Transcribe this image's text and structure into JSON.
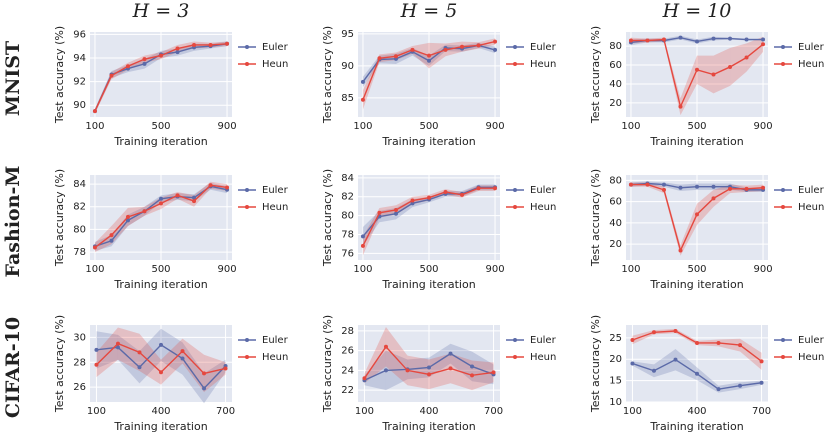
{
  "columns": [
    "H = 3",
    "H = 5",
    "H = 10"
  ],
  "rows": [
    "MNIST",
    "Fashion-M",
    "CIFAR-10"
  ],
  "chart_data": [
    {
      "type": "line",
      "xlabel": "Training iteration",
      "ylabel": "Test accuracy (%)",
      "legend": "right",
      "grid": true,
      "x": [
        100,
        200,
        300,
        400,
        500,
        600,
        700,
        800,
        900
      ],
      "xlim": [
        70,
        930
      ],
      "xticks": [
        100,
        500,
        900
      ],
      "ylim": [
        89,
        96.2
      ],
      "yticks": [
        90,
        92,
        94,
        96
      ],
      "series": [
        {
          "name": "Euler",
          "color": "#5b6aa8",
          "values": [
            89.5,
            92.6,
            93.1,
            93.5,
            94.3,
            94.5,
            94.9,
            95.0,
            95.2
          ],
          "spread": [
            0.2,
            0.3,
            0.3,
            0.4,
            0.3,
            0.3,
            0.3,
            0.2,
            0.2
          ]
        },
        {
          "name": "Heun",
          "color": "#e5483f",
          "values": [
            89.5,
            92.5,
            93.3,
            93.9,
            94.2,
            94.8,
            95.1,
            95.1,
            95.2
          ],
          "spread": [
            0.2,
            0.3,
            0.3,
            0.3,
            0.3,
            0.3,
            0.3,
            0.2,
            0.2
          ]
        }
      ]
    },
    {
      "type": "line",
      "xlabel": "Training iteration",
      "ylabel": "Test accuracy (%)",
      "legend": "right",
      "grid": true,
      "x": [
        100,
        200,
        300,
        400,
        500,
        600,
        700,
        800,
        900
      ],
      "xlim": [
        70,
        930
      ],
      "xticks": [
        100,
        500,
        900
      ],
      "ylim": [
        82,
        95.3
      ],
      "yticks": [
        85,
        90,
        95
      ],
      "series": [
        {
          "name": "Euler",
          "color": "#5b6aa8",
          "values": [
            87.5,
            91.0,
            91.1,
            92.2,
            90.8,
            92.8,
            92.7,
            93.2,
            92.5
          ],
          "spread": [
            0.8,
            0.6,
            0.8,
            0.6,
            0.8,
            0.5,
            0.5,
            0.4,
            0.5
          ]
        },
        {
          "name": "Heun",
          "color": "#e5483f",
          "values": [
            84.7,
            91.2,
            91.5,
            92.5,
            91.6,
            92.5,
            93.0,
            93.2,
            93.8
          ],
          "spread": [
            1.5,
            0.6,
            0.6,
            0.6,
            2,
            1,
            0.8,
            0.5,
            0.5
          ]
        }
      ]
    },
    {
      "type": "line",
      "xlabel": "Training iteration",
      "ylabel": "Test accuracy (%)",
      "legend": "right",
      "grid": true,
      "x": [
        100,
        200,
        300,
        400,
        500,
        600,
        700,
        800,
        900
      ],
      "xlim": [
        70,
        930
      ],
      "xticks": [
        100,
        500,
        900
      ],
      "ylim": [
        5,
        95
      ],
      "yticks": [
        20,
        40,
        60,
        80
      ],
      "series": [
        {
          "name": "Euler",
          "color": "#5b6aa8",
          "values": [
            84,
            86,
            86,
            89,
            85,
            88,
            88,
            87,
            87
          ],
          "spread": [
            3,
            2,
            2,
            2,
            2,
            2,
            1,
            1,
            1
          ]
        },
        {
          "name": "Heun",
          "color": "#e5483f",
          "values": [
            86,
            86,
            87,
            16,
            55,
            50,
            58,
            68,
            82
          ],
          "spread": [
            3,
            2,
            2,
            9,
            15,
            20,
            20,
            15,
            8
          ]
        }
      ]
    },
    {
      "type": "line",
      "xlabel": "Training iteration",
      "ylabel": "Test accuracy (%)",
      "legend": "right",
      "grid": true,
      "x": [
        100,
        200,
        300,
        400,
        500,
        600,
        700,
        800,
        900
      ],
      "xlim": [
        70,
        930
      ],
      "xticks": [
        100,
        500,
        900
      ],
      "ylim": [
        77.3,
        84.8
      ],
      "yticks": [
        78,
        80,
        82,
        84
      ],
      "series": [
        {
          "name": "Euler",
          "color": "#5b6aa8",
          "values": [
            78.5,
            79.0,
            80.8,
            81.6,
            82.7,
            82.9,
            82.8,
            83.8,
            83.5
          ],
          "spread": [
            0.4,
            0.5,
            0.5,
            0.4,
            0.3,
            0.3,
            0.3,
            0.3,
            0.3
          ]
        },
        {
          "name": "Heun",
          "color": "#e5483f",
          "values": [
            78.4,
            79.5,
            81.1,
            81.6,
            82.3,
            83.0,
            82.5,
            83.9,
            83.7
          ],
          "spread": [
            0.4,
            0.8,
            0.8,
            0.4,
            0.5,
            0.3,
            0.5,
            0.3,
            0.3
          ]
        }
      ]
    },
    {
      "type": "line",
      "xlabel": "Training iteration",
      "ylabel": "Test accuracy (%)",
      "legend": "right",
      "grid": true,
      "x": [
        100,
        200,
        300,
        400,
        500,
        600,
        700,
        800,
        900
      ],
      "xlim": [
        70,
        930
      ],
      "xticks": [
        100,
        500,
        900
      ],
      "ylim": [
        75.3,
        84.3
      ],
      "yticks": [
        76,
        78,
        80,
        82,
        84
      ],
      "series": [
        {
          "name": "Euler",
          "color": "#5b6aa8",
          "values": [
            77.8,
            79.9,
            80.2,
            81.3,
            81.7,
            82.3,
            82.3,
            83.0,
            83.0
          ],
          "spread": [
            1,
            0.6,
            0.6,
            0.4,
            0.3,
            0.3,
            0.3,
            0.3,
            0.3
          ]
        },
        {
          "name": "Heun",
          "color": "#e5483f",
          "values": [
            76.8,
            80.3,
            80.6,
            81.6,
            81.9,
            82.5,
            82.2,
            82.9,
            82.9
          ],
          "spread": [
            1,
            0.5,
            0.5,
            0.4,
            0.3,
            0.3,
            0.3,
            0.3,
            0.3
          ]
        }
      ]
    },
    {
      "type": "line",
      "xlabel": "Training iteration",
      "ylabel": "Test accuracy (%)",
      "legend": "right",
      "grid": true,
      "x": [
        100,
        200,
        300,
        400,
        500,
        600,
        700,
        800,
        900
      ],
      "xlim": [
        70,
        930
      ],
      "xticks": [
        100,
        500,
        900
      ],
      "ylim": [
        5,
        85
      ],
      "yticks": [
        20,
        40,
        60,
        80
      ],
      "series": [
        {
          "name": "Euler",
          "color": "#5b6aa8",
          "values": [
            76,
            77,
            76,
            73,
            74,
            74,
            74,
            71,
            71
          ],
          "spread": [
            2,
            2,
            2,
            3,
            3,
            3,
            3,
            2,
            2
          ]
        },
        {
          "name": "Heun",
          "color": "#e5483f",
          "values": [
            76,
            76,
            71,
            14,
            48,
            63,
            72,
            72,
            73
          ],
          "spread": [
            2,
            2,
            3,
            5,
            10,
            8,
            4,
            3,
            3
          ]
        }
      ]
    },
    {
      "type": "line",
      "xlabel": "Training iteration",
      "ylabel": "Test accuracy (%)",
      "legend": "right",
      "grid": true,
      "x": [
        100,
        200,
        300,
        400,
        500,
        600,
        700
      ],
      "xlim": [
        70,
        730
      ],
      "xticks": [
        100,
        400,
        700
      ],
      "ylim": [
        24.8,
        31
      ],
      "yticks": [
        26,
        28,
        30
      ],
      "series": [
        {
          "name": "Euler",
          "color": "#5b6aa8",
          "values": [
            29.0,
            29.2,
            27.6,
            29.4,
            28.3,
            25.9,
            27.7
          ],
          "spread": [
            1.5,
            1,
            1.3,
            1.3,
            1.3,
            1.2,
            0.5
          ]
        },
        {
          "name": "Heun",
          "color": "#e5483f",
          "values": [
            27.8,
            29.5,
            28.8,
            27.2,
            28.9,
            27.1,
            27.5
          ],
          "spread": [
            1,
            1.3,
            1.5,
            1,
            1,
            1.5,
            0.5
          ]
        }
      ]
    },
    {
      "type": "line",
      "xlabel": "Training iteration",
      "ylabel": "Test accuracy (%)",
      "legend": "right",
      "grid": true,
      "x": [
        100,
        200,
        300,
        400,
        500,
        600,
        700
      ],
      "xlim": [
        70,
        730
      ],
      "xticks": [
        100,
        400,
        700
      ],
      "ylim": [
        20.8,
        28.6
      ],
      "yticks": [
        22,
        24,
        26,
        28
      ],
      "series": [
        {
          "name": "Euler",
          "color": "#5b6aa8",
          "values": [
            23.0,
            24.0,
            24.1,
            24.3,
            25.7,
            24.4,
            23.6
          ],
          "spread": [
            0.5,
            2,
            1,
            1,
            1,
            1.5,
            1
          ]
        },
        {
          "name": "Heun",
          "color": "#e5483f",
          "values": [
            23.2,
            26.4,
            24.0,
            23.6,
            24.2,
            23.5,
            23.8
          ],
          "spread": [
            0.5,
            2,
            1.5,
            1.5,
            1.5,
            1.5,
            1
          ]
        }
      ]
    },
    {
      "type": "line",
      "xlabel": "Training iteration",
      "ylabel": "Test accuracy (%)",
      "legend": "right",
      "grid": true,
      "x": [
        100,
        200,
        300,
        400,
        500,
        600,
        700
      ],
      "xlim": [
        70,
        730
      ],
      "xticks": [
        100,
        400,
        700
      ],
      "ylim": [
        10,
        28
      ],
      "yticks": [
        10,
        15,
        20,
        25
      ],
      "series": [
        {
          "name": "Euler",
          "color": "#5b6aa8",
          "values": [
            19.0,
            17.3,
            19.9,
            16.6,
            13.0,
            13.8,
            14.5
          ],
          "spread": [
            0.5,
            1.5,
            2.5,
            1.5,
            0.8,
            0.8,
            0.5
          ]
        },
        {
          "name": "Heun",
          "color": "#e5483f",
          "values": [
            24.5,
            26.3,
            26.6,
            23.8,
            23.8,
            23.3,
            19.5
          ],
          "spread": [
            1,
            0.5,
            0.5,
            0.5,
            0.8,
            1.5,
            2
          ]
        }
      ]
    }
  ]
}
